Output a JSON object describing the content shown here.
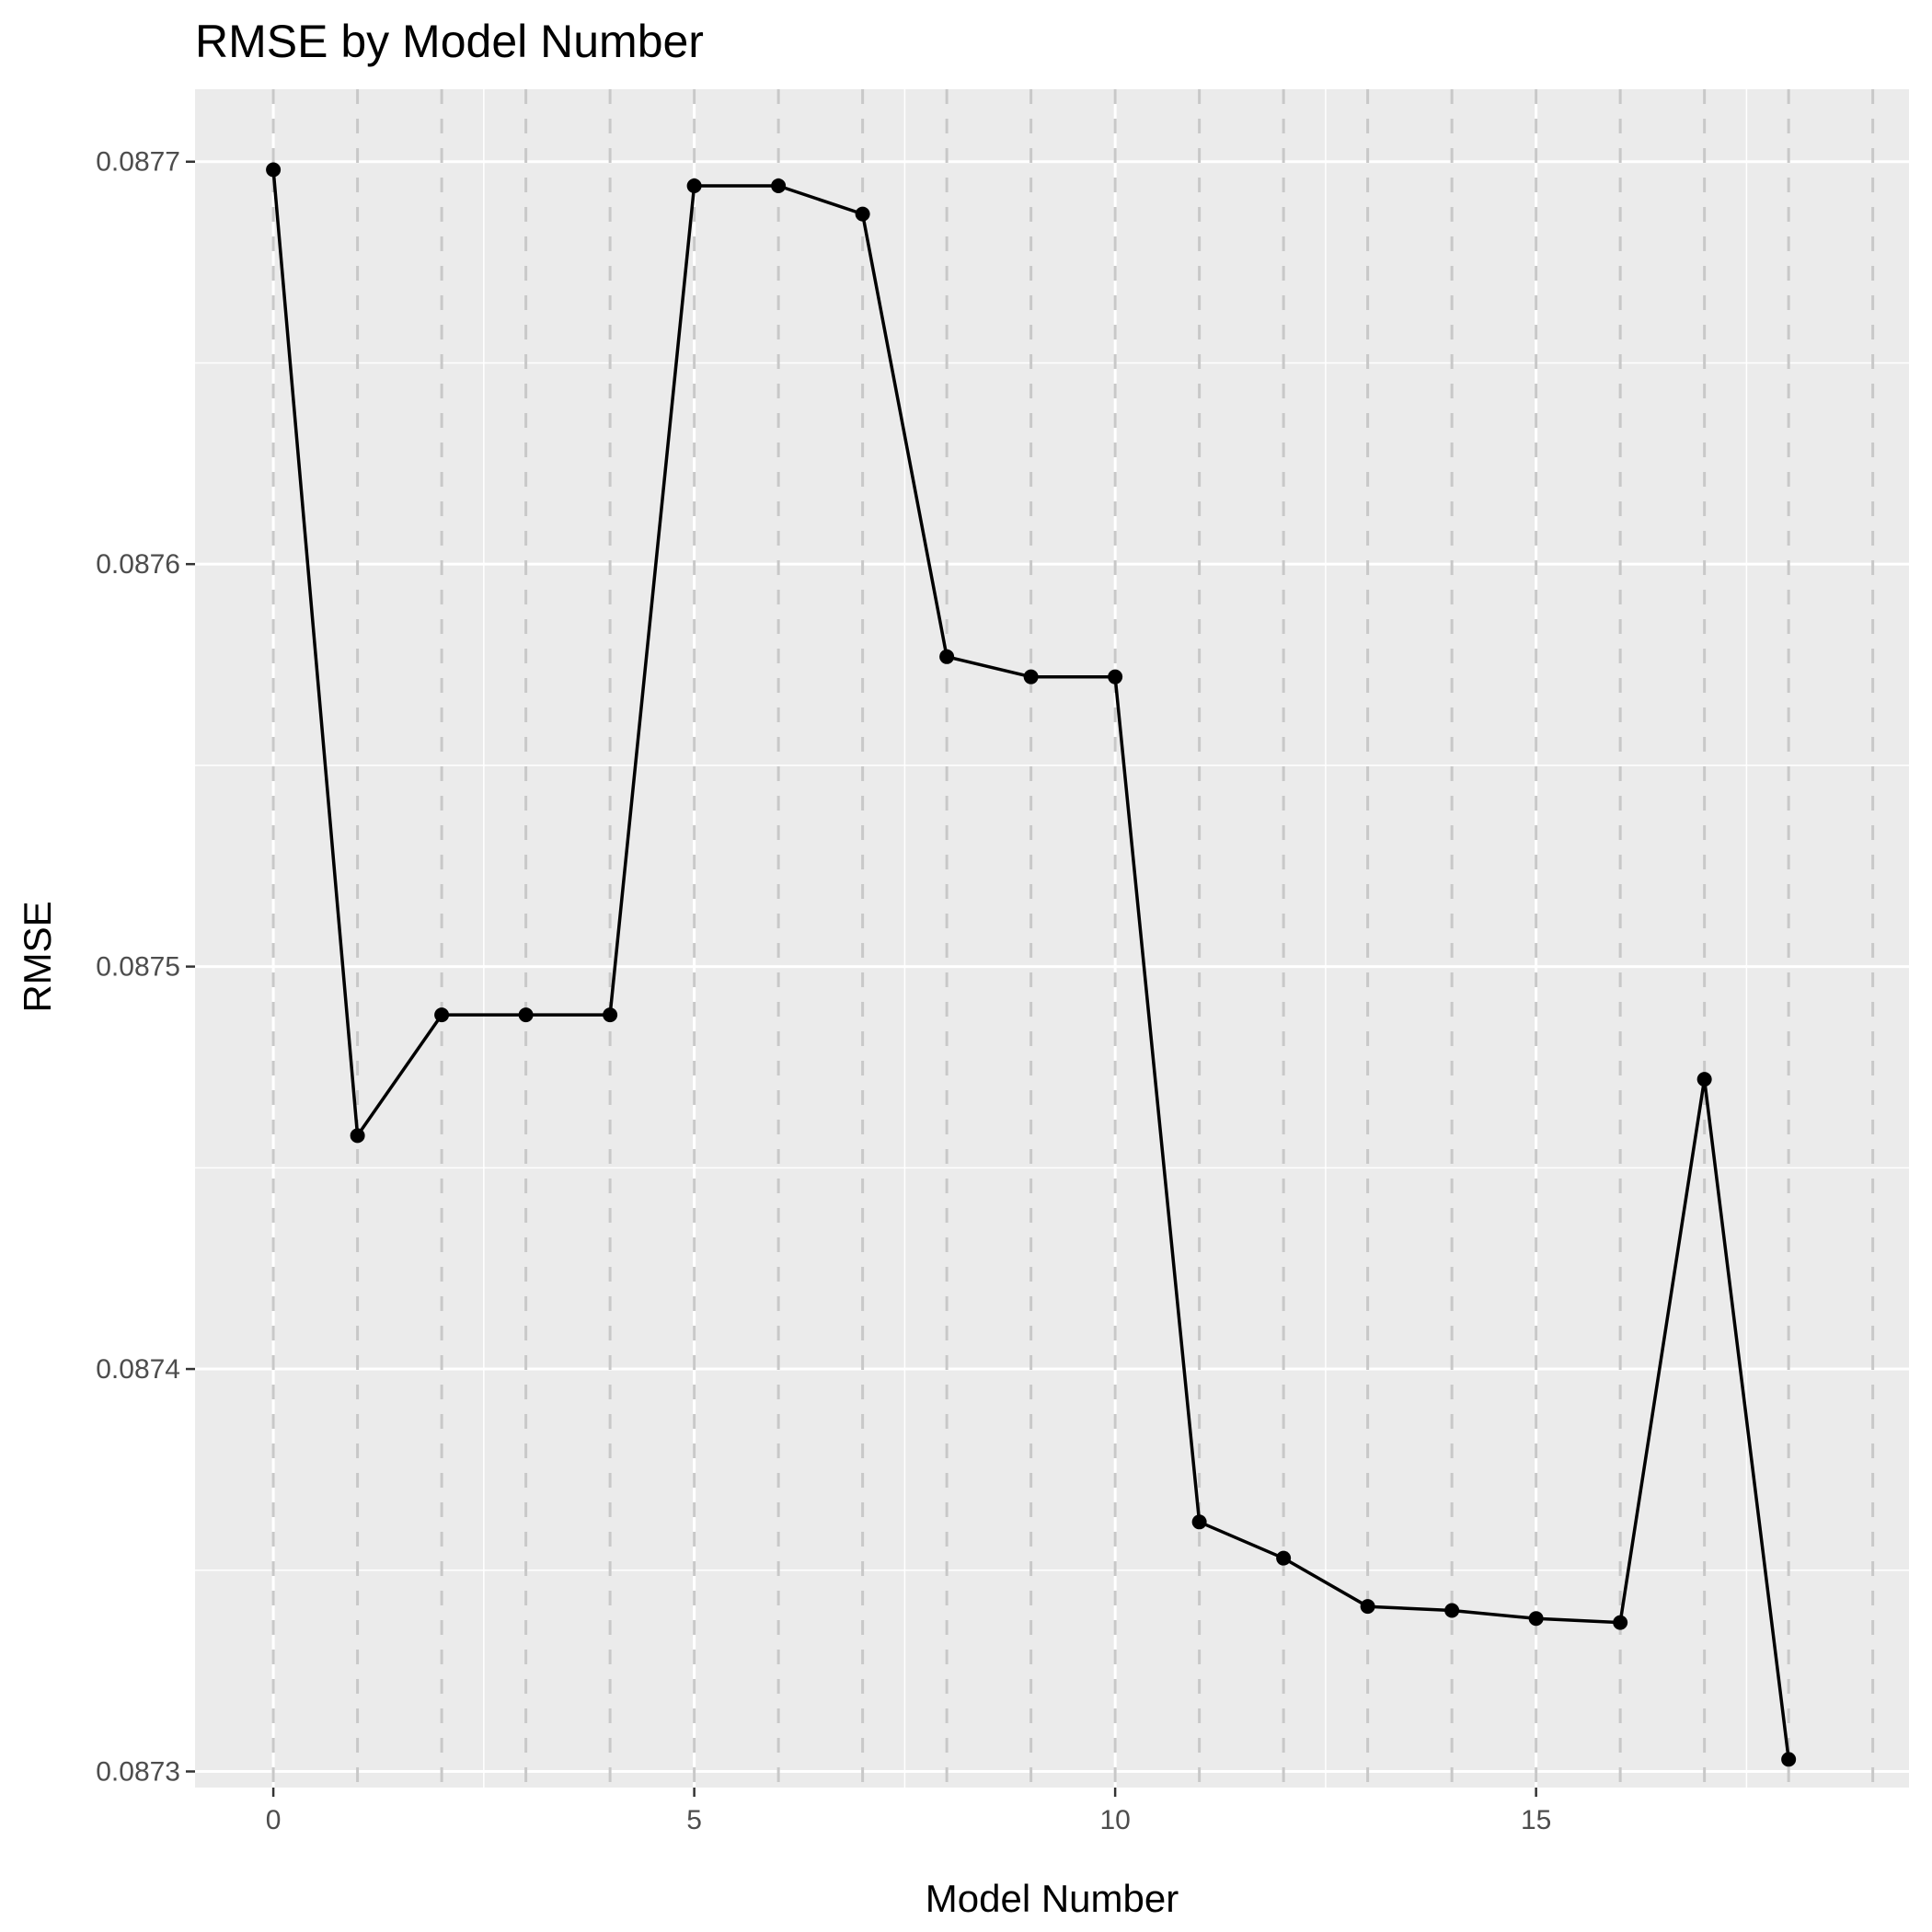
{
  "chart_data": {
    "type": "line",
    "title": "RMSE by Model Number",
    "xlabel": "Model Number",
    "ylabel": "RMSE",
    "x": [
      0,
      1,
      2,
      3,
      4,
      5,
      6,
      7,
      8,
      9,
      10,
      11,
      12,
      13,
      14,
      15,
      16,
      17,
      18
    ],
    "y": [
      0.087698,
      0.087458,
      0.087488,
      0.087488,
      0.087488,
      0.087694,
      0.087694,
      0.087687,
      0.087577,
      0.087572,
      0.087572,
      0.087362,
      0.087353,
      0.087341,
      0.08734,
      0.087338,
      0.087337,
      0.087472,
      0.087303
    ],
    "xlim": [
      -0.93,
      19.43
    ],
    "ylim": [
      0.087296,
      0.087718
    ],
    "x_ticks": [
      0,
      5,
      10,
      15
    ],
    "x_tick_labels": [
      "0",
      "5",
      "10",
      "15"
    ],
    "y_ticks": [
      0.0873,
      0.0874,
      0.0875,
      0.0876,
      0.0877
    ],
    "y_tick_labels": [
      "0.0873",
      "0.0874",
      "0.0875",
      "0.0876",
      "0.0877"
    ],
    "vlines": [
      0,
      1,
      2,
      3,
      4,
      5,
      6,
      7,
      8,
      9,
      10,
      11,
      12,
      13,
      14,
      15,
      16,
      17,
      18,
      19
    ],
    "grid": true,
    "legend": "none",
    "colors": {
      "panel_background": "#ebebeb",
      "grid": "#ffffff",
      "vline": "#c8c8c8",
      "line": "#000000",
      "point": "#000000",
      "tick_text": "#4d4d4d"
    }
  }
}
